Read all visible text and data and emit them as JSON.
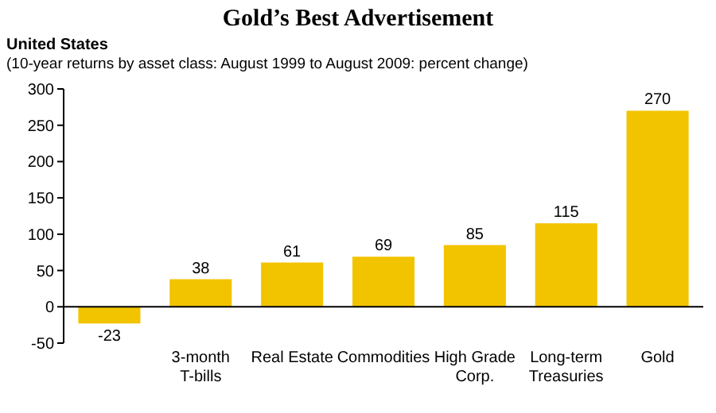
{
  "chart_data": {
    "type": "bar",
    "title": "Gold’s Best Advertisement",
    "subtitle": "United States",
    "annotations": [
      "(10-year returns by asset class: August 1999 to August 2009: percent change)"
    ],
    "categories": [
      null,
      "3-month\nT-bills",
      "Real Estate",
      "Commodities",
      "High Grade\nCorp.",
      "Long-term\nTreasuries",
      "Gold"
    ],
    "values": [
      -23,
      38,
      61,
      69,
      85,
      115,
      270
    ],
    "color": "#f2c400",
    "ylim": [
      -50,
      300
    ],
    "yticks": [
      -50,
      0,
      50,
      100,
      150,
      200,
      250,
      300
    ],
    "data_labels": true
  }
}
